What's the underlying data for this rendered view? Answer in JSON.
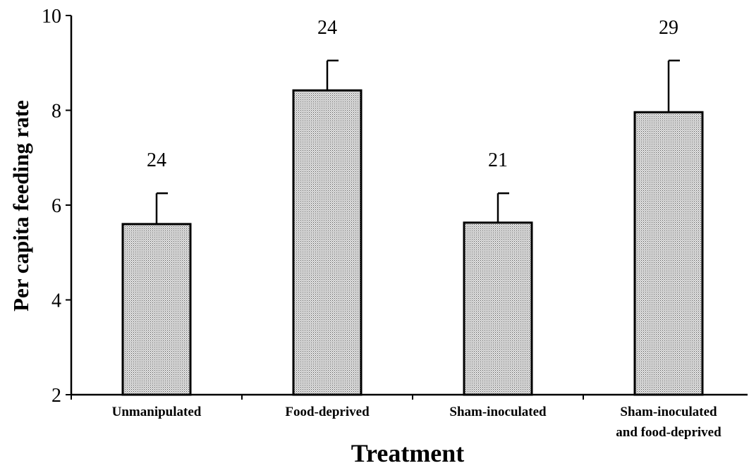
{
  "chart_data": {
    "type": "bar",
    "title": "",
    "xlabel": "Treatment",
    "ylabel": "Per capita feeding rate",
    "ylim": [
      2,
      10
    ],
    "yticks": [
      "2",
      "4",
      "6",
      "8",
      "10"
    ],
    "grid": false,
    "categories": [
      [
        "Unmanipulated"
      ],
      [
        "Food-deprived"
      ],
      [
        "Sham-inoculated"
      ],
      [
        "Sham-inoculated",
        "and food-deprived"
      ]
    ],
    "values": [
      5.6,
      8.42,
      5.63,
      7.96
    ],
    "error_upper": [
      6.25,
      9.05,
      6.25,
      9.05
    ],
    "sample_sizes": [
      "24",
      "24",
      "21",
      "29"
    ],
    "colors": {
      "bar_fill": "#d6d6d6",
      "bar_stroke": "#000000"
    }
  }
}
